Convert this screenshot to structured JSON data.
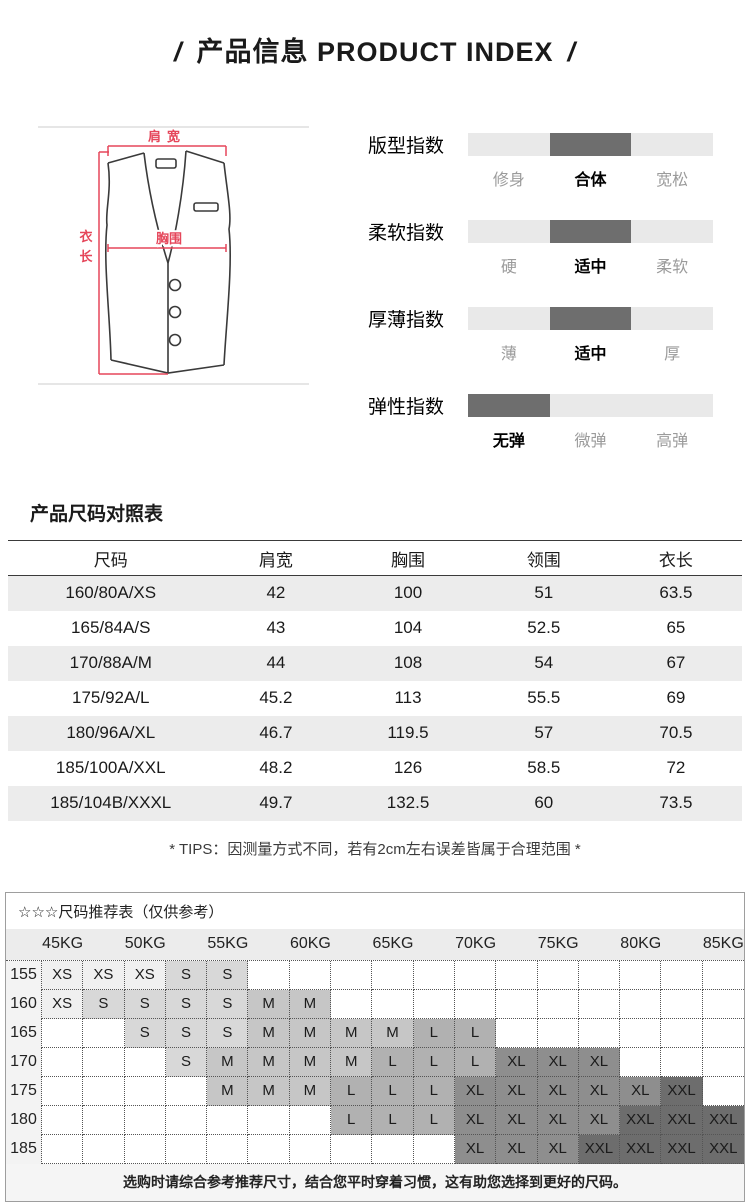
{
  "header": {
    "left_slash": "/",
    "title": "产品信息 PRODUCT INDEX",
    "right_slash": "/"
  },
  "diagram": {
    "labels": {
      "shoulder": "肩宽",
      "length_v": "衣长",
      "chest": "胸围"
    },
    "accent_color": "#e5465a",
    "line_color": "#3a3a3a"
  },
  "indexes": {
    "track_color": "#e9e9e9",
    "active_color": "#6e6e6e",
    "groups": [
      {
        "title": "版型指数",
        "labels": [
          "修身",
          "合体",
          "宽松"
        ],
        "active_segment": 1,
        "active_label": "合体"
      },
      {
        "title": "柔软指数",
        "labels": [
          "硬",
          "适中",
          "柔软"
        ],
        "active_segment": 1,
        "active_label": "适中"
      },
      {
        "title": "厚薄指数",
        "labels": [
          "薄",
          "适中",
          "厚"
        ],
        "active_segment": 1,
        "active_label": "适中"
      },
      {
        "title": "弹性指数",
        "labels": [
          "无弹",
          "微弹",
          "高弹"
        ],
        "active_segment": 0,
        "active_label": "无弹"
      }
    ]
  },
  "size_table": {
    "title": "产品尺码对照表",
    "headers": [
      "尺码",
      "肩宽",
      "胸围",
      "领围",
      "衣长"
    ],
    "rows": [
      [
        "160/80A/XS",
        "42",
        "100",
        "51",
        "63.5"
      ],
      [
        "165/84A/S",
        "43",
        "104",
        "52.5",
        "65"
      ],
      [
        "170/88A/M",
        "44",
        "108",
        "54",
        "67"
      ],
      [
        "175/92A/L",
        "45.2",
        "113",
        "55.5",
        "69"
      ],
      [
        "180/96A/XL",
        "46.7",
        "119.5",
        "57",
        "70.5"
      ],
      [
        "185/100A/XXL",
        "48.2",
        "126",
        "58.5",
        "72"
      ],
      [
        "185/104B/XXXL",
        "49.7",
        "132.5",
        "60",
        "73.5"
      ]
    ],
    "tips": "* TIPS：因测量方式不同，若有2cm左右误差皆属于合理范围 *"
  },
  "recommend": {
    "title": "☆☆☆尺码推荐表（仅供参考）",
    "weight_headers": [
      "45KG",
      "50KG",
      "55KG",
      "60KG",
      "65KG",
      "70KG",
      "75KG",
      "80KG",
      "85KG"
    ],
    "height_rows": [
      {
        "height": "155",
        "cells": [
          "XS",
          "XS",
          "XS",
          "S",
          "S",
          "",
          "",
          "",
          "",
          "",
          "",
          "",
          "",
          "",
          "",
          "",
          ""
        ]
      },
      {
        "height": "160",
        "cells": [
          "XS",
          "S",
          "S",
          "S",
          "S",
          "M",
          "M",
          "",
          "",
          "",
          "",
          "",
          "",
          "",
          "",
          "",
          ""
        ]
      },
      {
        "height": "165",
        "cells": [
          "",
          "",
          "S",
          "S",
          "S",
          "M",
          "M",
          "M",
          "M",
          "L",
          "L",
          "",
          "",
          "",
          "",
          "",
          ""
        ]
      },
      {
        "height": "170",
        "cells": [
          "",
          "",
          "",
          "S",
          "M",
          "M",
          "M",
          "M",
          "L",
          "L",
          "L",
          "XL",
          "XL",
          "XL",
          "",
          "",
          ""
        ]
      },
      {
        "height": "175",
        "cells": [
          "",
          "",
          "",
          "",
          "M",
          "M",
          "M",
          "L",
          "L",
          "L",
          "XL",
          "XL",
          "XL",
          "XL",
          "XL",
          "XXL",
          ""
        ]
      },
      {
        "height": "180",
        "cells": [
          "",
          "",
          "",
          "",
          "",
          "",
          "",
          "L",
          "L",
          "L",
          "XL",
          "XL",
          "XL",
          "XL",
          "XXL",
          "XXL",
          "XXL"
        ]
      },
      {
        "height": "185",
        "cells": [
          "",
          "",
          "",
          "",
          "",
          "",
          "",
          "",
          "",
          "",
          "XL",
          "XL",
          "XL",
          "XXL",
          "XXL",
          "XXL",
          "XXL"
        ]
      }
    ],
    "size_colors": {
      "XS": "#f0f0f0",
      "S": "#d8d8d8",
      "M": "#c6c6c6",
      "L": "#b1b1b1",
      "XL": "#8e8e8e",
      "XXL": "#6d6d6d"
    },
    "note": "选购时请综合参考推荐尺寸，结合您平时穿着习惯，这有助您选择到更好的尺码。"
  }
}
